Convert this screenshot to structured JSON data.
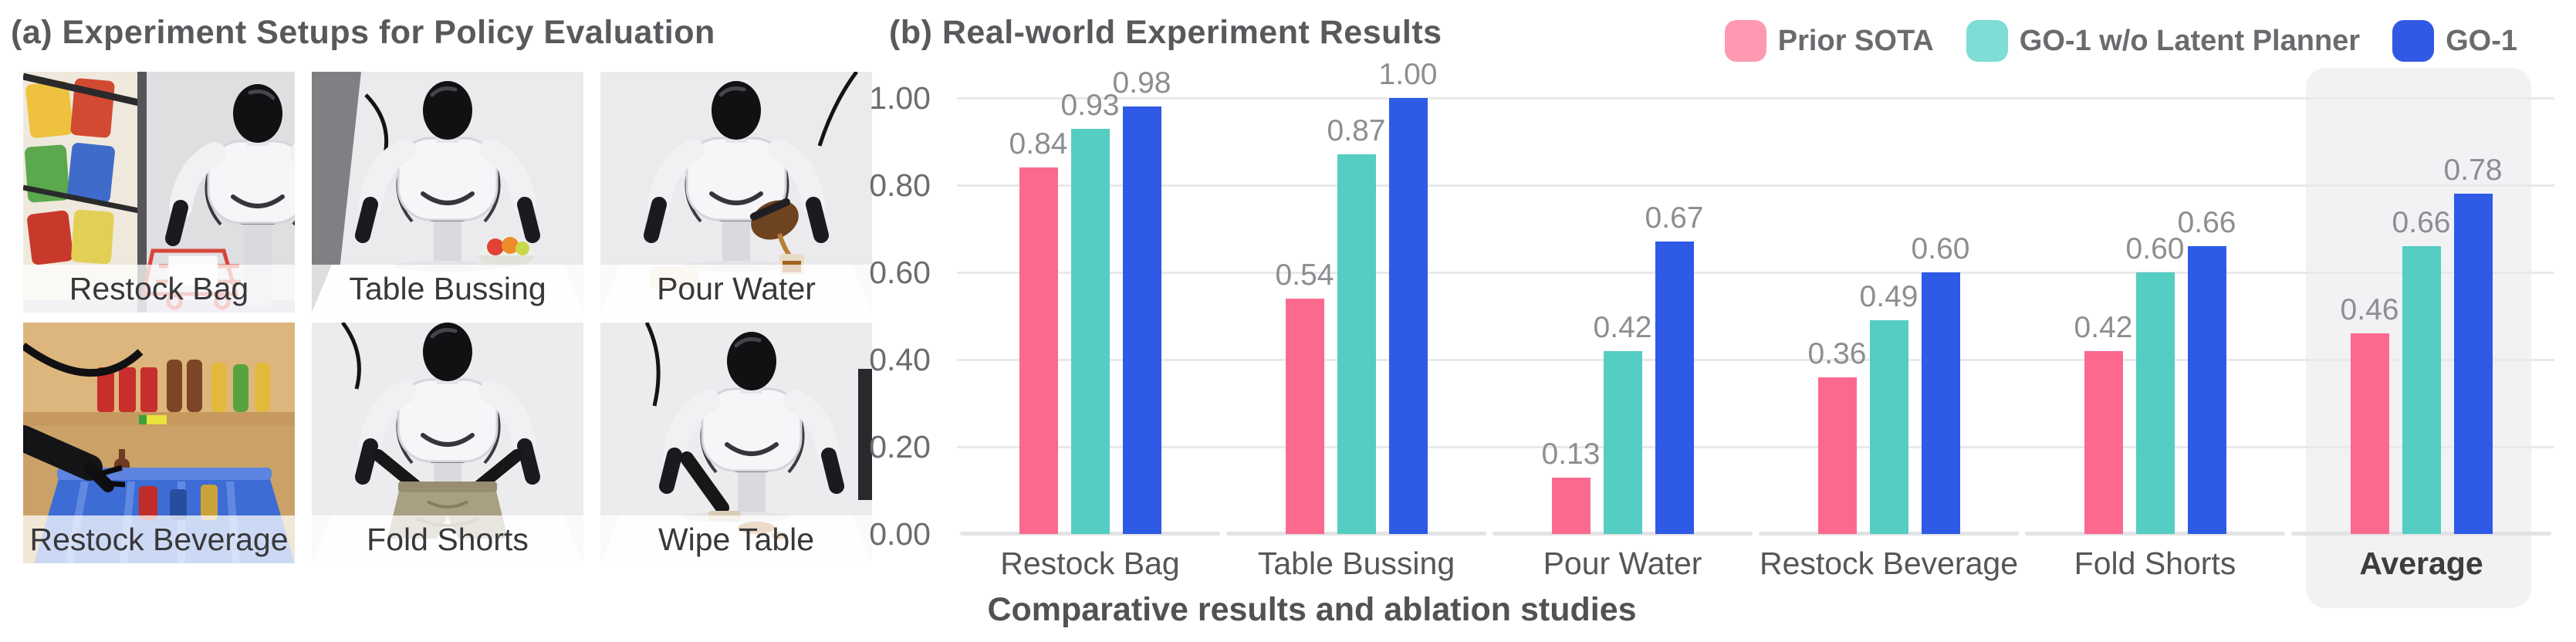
{
  "panel_a": {
    "title": "(a) Experiment Setups for Policy Evaluation",
    "setups": [
      {
        "label": "Restock Bag"
      },
      {
        "label": "Table Bussing"
      },
      {
        "label": "Pour Water"
      },
      {
        "label": "Restock Beverage"
      },
      {
        "label": "Fold Shorts"
      },
      {
        "label": "Wipe Table"
      }
    ]
  },
  "panel_b": {
    "title": "(b) Real-world Experiment Results",
    "caption": "Comparative results and ablation studies",
    "legend": [
      {
        "label": "Prior SOTA",
        "color": "#fd99b1"
      },
      {
        "label": "GO-1 w/o Latent Planner",
        "color": "#7eddd4"
      },
      {
        "label": "GO-1",
        "color": "#3159e4"
      }
    ]
  },
  "chart_data": {
    "type": "bar",
    "title": "Real-world Experiment Results",
    "categories": [
      "Restock Bag",
      "Table Bussing",
      "Pour Water",
      "Restock Beverage",
      "Fold Shorts",
      "Average"
    ],
    "series": [
      {
        "name": "Prior SOTA",
        "color": "#fb6a8e",
        "values": [
          0.84,
          0.54,
          0.13,
          0.36,
          0.42,
          0.46
        ]
      },
      {
        "name": "GO-1 w/o Latent Planner",
        "color": "#55cdc3",
        "values": [
          0.93,
          0.87,
          0.42,
          0.49,
          0.6,
          0.66
        ]
      },
      {
        "name": "GO-1",
        "color": "#2e5ae6",
        "values": [
          0.98,
          1.0,
          0.67,
          0.6,
          0.66,
          0.78
        ]
      }
    ],
    "xlabel": "",
    "ylabel": "",
    "ylim": [
      0,
      1.0
    ],
    "yticks": [
      "1.00",
      "0.80",
      "0.60",
      "0.40",
      "0.20",
      "0.00"
    ],
    "grid": true,
    "legend_position": "top-right",
    "value_labels": true,
    "highlight_category": "Average"
  }
}
